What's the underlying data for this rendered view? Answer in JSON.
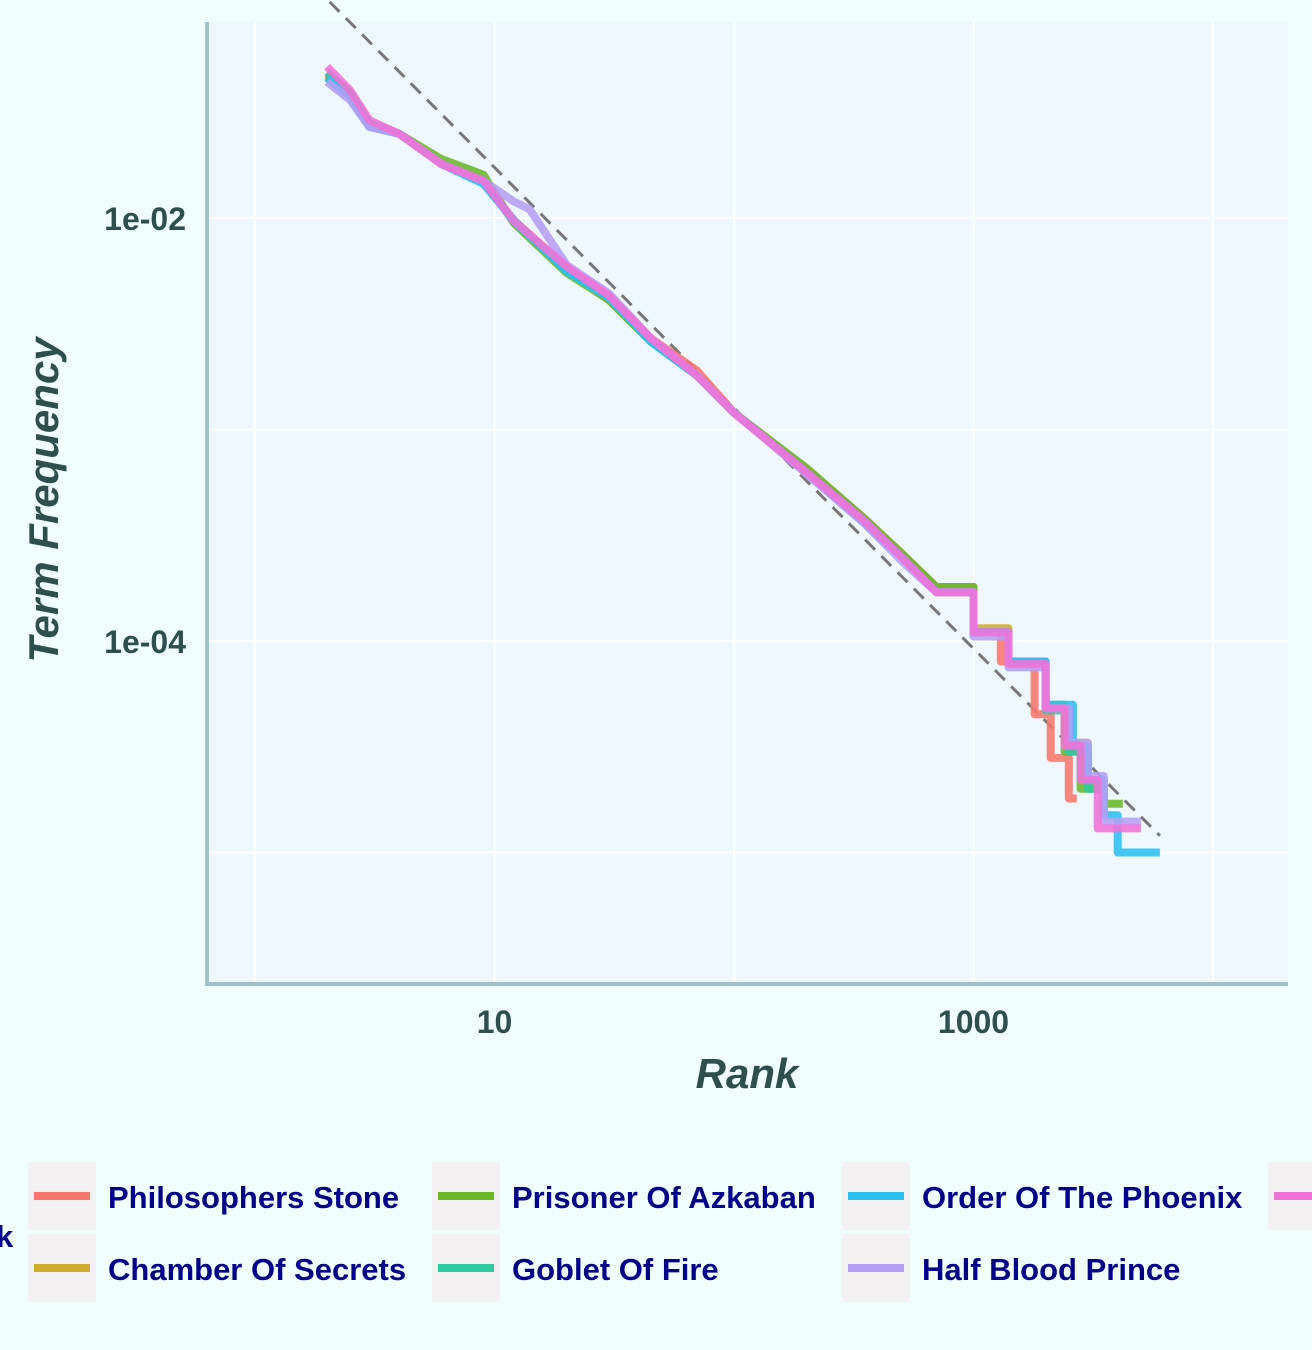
{
  "chart_data": {
    "type": "line",
    "title": "",
    "xlabel": "Rank",
    "ylabel": "Term Frequency",
    "x_scale": "log10",
    "y_scale": "log10",
    "xlim": [
      1,
      10000
    ],
    "ylim": [
      5.5e-06,
      0.08
    ],
    "x_ticks": [
      {
        "value": 10,
        "label": "10"
      },
      {
        "value": 1000,
        "label": "1000"
      }
    ],
    "y_ticks": [
      {
        "value": 0.01,
        "label": "1e-02"
      },
      {
        "value": 0.0001,
        "label": "1e-04"
      }
    ],
    "x_grid": [
      1,
      10,
      100,
      1000,
      10000
    ],
    "y_grid": [
      0.01,
      0.001,
      0.0001,
      1e-05
    ],
    "grid": true,
    "legend_position": "bottom",
    "reference_line": {
      "style": "dashed",
      "color": "#777777",
      "points": [
        [
          1.5,
          0.15
        ],
        [
          6000,
          1.2e-05
        ]
      ]
    },
    "series": [
      {
        "name": "Philosophers Stone",
        "color": "#f8766d",
        "points": [
          [
            2,
            0.048
          ],
          [
            2.5,
            0.039
          ],
          [
            3,
            0.028
          ],
          [
            4,
            0.025
          ],
          [
            6,
            0.018
          ],
          [
            9,
            0.0148
          ],
          [
            12,
            0.0098
          ],
          [
            20,
            0.0058
          ],
          [
            30,
            0.0043
          ],
          [
            45,
            0.0027
          ],
          [
            70,
            0.0019
          ],
          [
            100,
            0.0012
          ],
          [
            200,
            0.00065
          ],
          [
            350,
            0.00038
          ],
          [
            500,
            0.00026
          ],
          [
            700,
            0.00018
          ],
          [
            1000,
            0.00011
          ],
          [
            1300,
            8e-05
          ],
          [
            1800,
            4.5e-05
          ],
          [
            2100,
            2.8e-05
          ],
          [
            2500,
            1.8e-05
          ],
          [
            2700,
            1.8e-05
          ]
        ]
      },
      {
        "name": "Chamber Of Secrets",
        "color": "#cfab30",
        "points": [
          [
            2,
            0.046
          ],
          [
            2.5,
            0.038
          ],
          [
            3,
            0.028
          ],
          [
            4,
            0.025
          ],
          [
            6,
            0.018
          ],
          [
            9,
            0.015
          ],
          [
            12,
            0.0097
          ],
          [
            20,
            0.0058
          ],
          [
            30,
            0.0041
          ],
          [
            45,
            0.0026
          ],
          [
            70,
            0.0018
          ],
          [
            100,
            0.0012
          ],
          [
            200,
            0.00064
          ],
          [
            350,
            0.00037
          ],
          [
            500,
            0.00025
          ],
          [
            700,
            0.00018
          ],
          [
            1000,
            0.000115
          ],
          [
            1400,
            8e-05
          ],
          [
            2000,
            4.8e-05
          ],
          [
            2400,
            3.3e-05
          ],
          [
            3000,
            2.1e-05
          ],
          [
            3600,
            2.1e-05
          ]
        ]
      },
      {
        "name": "Prisoner Of Azkaban",
        "color": "#6ab82a",
        "points": [
          [
            2,
            0.047
          ],
          [
            2.5,
            0.038
          ],
          [
            3,
            0.028
          ],
          [
            4,
            0.025
          ],
          [
            6,
            0.019
          ],
          [
            9,
            0.016
          ],
          [
            12,
            0.0095
          ],
          [
            20,
            0.0055
          ],
          [
            30,
            0.0041
          ],
          [
            45,
            0.0026
          ],
          [
            70,
            0.0018
          ],
          [
            100,
            0.0012
          ],
          [
            200,
            0.00066
          ],
          [
            350,
            0.00038
          ],
          [
            500,
            0.00026
          ],
          [
            700,
            0.00018
          ],
          [
            1000,
            0.00011
          ],
          [
            1400,
            8e-05
          ],
          [
            2000,
            5e-05
          ],
          [
            2400,
            3e-05
          ],
          [
            2800,
            2e-05
          ],
          [
            3500,
            1.7e-05
          ],
          [
            4200,
            1.7e-05
          ]
        ]
      },
      {
        "name": "Goblet Of Fire",
        "color": "#2ec9a0",
        "points": [
          [
            2,
            0.049
          ],
          [
            2.5,
            0.039
          ],
          [
            3,
            0.028
          ],
          [
            4,
            0.025
          ],
          [
            6,
            0.018
          ],
          [
            9,
            0.015
          ],
          [
            12,
            0.0096
          ],
          [
            20,
            0.0057
          ],
          [
            30,
            0.0042
          ],
          [
            45,
            0.0026
          ],
          [
            70,
            0.0018
          ],
          [
            100,
            0.0012
          ],
          [
            200,
            0.00063
          ],
          [
            350,
            0.00037
          ],
          [
            500,
            0.00025
          ],
          [
            700,
            0.00017
          ],
          [
            1000,
            0.00011
          ],
          [
            1400,
            8e-05
          ],
          [
            2000,
            4.7e-05
          ],
          [
            2500,
            3e-05
          ],
          [
            3000,
            2e-05
          ],
          [
            3400,
            2e-05
          ]
        ]
      },
      {
        "name": "Order Of The Phoenix",
        "color": "#2bbff0",
        "points": [
          [
            2,
            0.046
          ],
          [
            2.5,
            0.037
          ],
          [
            3,
            0.027
          ],
          [
            4,
            0.025
          ],
          [
            6,
            0.018
          ],
          [
            9,
            0.0145
          ],
          [
            12,
            0.0098
          ],
          [
            20,
            0.0056
          ],
          [
            30,
            0.0042
          ],
          [
            45,
            0.0026
          ],
          [
            70,
            0.0018
          ],
          [
            100,
            0.0012
          ],
          [
            200,
            0.00063
          ],
          [
            350,
            0.00036
          ],
          [
            500,
            0.00025
          ],
          [
            700,
            0.00017
          ],
          [
            1000,
            0.00011
          ],
          [
            1400,
            8e-05
          ],
          [
            2000,
            5e-05
          ],
          [
            2600,
            3.2e-05
          ],
          [
            3000,
            2.2e-05
          ],
          [
            3500,
            1.5e-05
          ],
          [
            4000,
            1e-05
          ],
          [
            6000,
            1e-05
          ]
        ]
      },
      {
        "name": "Half Blood Prince",
        "color": "#b59ef5",
        "points": [
          [
            2,
            0.044
          ],
          [
            2.5,
            0.036
          ],
          [
            3,
            0.027
          ],
          [
            4,
            0.025
          ],
          [
            6,
            0.018
          ],
          [
            9,
            0.015
          ],
          [
            12,
            0.012
          ],
          [
            14,
            0.011
          ],
          [
            20,
            0.006
          ],
          [
            30,
            0.0044
          ],
          [
            45,
            0.0027
          ],
          [
            70,
            0.0018
          ],
          [
            100,
            0.0012
          ],
          [
            200,
            0.00062
          ],
          [
            350,
            0.00036
          ],
          [
            500,
            0.00024
          ],
          [
            700,
            0.00017
          ],
          [
            1000,
            0.000105
          ],
          [
            1400,
            7.5e-05
          ],
          [
            2000,
            4.8e-05
          ],
          [
            2500,
            3.3e-05
          ],
          [
            3000,
            2.3e-05
          ],
          [
            3500,
            1.4e-05
          ],
          [
            4500,
            1.4e-05
          ],
          [
            5000,
            1.4e-05
          ]
        ]
      },
      {
        "name": "",
        "color": "#f171d8",
        "points": [
          [
            2,
            0.052
          ],
          [
            2.5,
            0.04
          ],
          [
            3,
            0.029
          ],
          [
            4,
            0.025
          ],
          [
            6,
            0.018
          ],
          [
            9,
            0.015
          ],
          [
            12,
            0.0097
          ],
          [
            20,
            0.0059
          ],
          [
            30,
            0.0043
          ],
          [
            45,
            0.0027
          ],
          [
            70,
            0.0018
          ],
          [
            100,
            0.0012
          ],
          [
            200,
            0.00063
          ],
          [
            350,
            0.00037
          ],
          [
            500,
            0.00025
          ],
          [
            700,
            0.00017
          ],
          [
            1000,
            0.00011
          ],
          [
            1400,
            7.8e-05
          ],
          [
            2000,
            4.8e-05
          ],
          [
            2400,
            3.2e-05
          ],
          [
            2800,
            2.2e-05
          ],
          [
            3300,
            1.3e-05
          ],
          [
            4500,
            1.3e-05
          ],
          [
            5000,
            1.3e-05
          ]
        ]
      }
    ]
  },
  "legend": {
    "title_fragment": "k"
  }
}
